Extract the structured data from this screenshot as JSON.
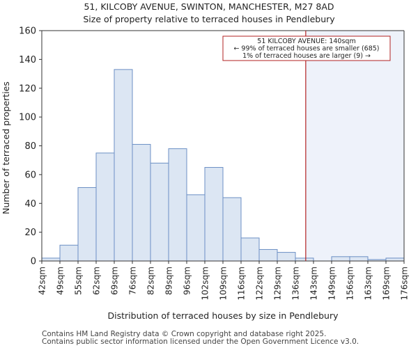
{
  "title_line1": "51, KILCOBY AVENUE, SWINTON, MANCHESTER, M27 8AD",
  "title_line2": "Size of property relative to terraced houses in Pendlebury",
  "footer_line1": "Contains HM Land Registry data © Crown copyright and database right 2025.",
  "footer_line2": "Contains public sector information licensed under the Open Government Licence v3.0.",
  "colors": {
    "bar_fill": "#dce6f3",
    "bar_stroke": "#6b8fc4",
    "highlight_fill": "#eef2fa",
    "marker_line": "#b22222",
    "annotation_border": "#b22222"
  },
  "chart_data": {
    "type": "bar",
    "title": "Size of property relative to terraced houses in Pendlebury",
    "xlabel": "Distribution of terraced houses by size in Pendlebury",
    "ylabel": "Number of terraced properties",
    "ylim": [
      0,
      160
    ],
    "yticks": [
      0,
      20,
      40,
      60,
      80,
      100,
      120,
      140,
      160
    ],
    "xlim": [
      42,
      176
    ],
    "bin_edges": [
      42,
      49,
      55,
      62,
      69,
      76,
      82,
      89,
      96,
      102,
      109,
      116,
      122,
      129,
      136,
      143,
      149,
      156,
      163,
      169,
      176
    ],
    "tick_labels": [
      "42sqm",
      "49sqm",
      "55sqm",
      "62sqm",
      "69sqm",
      "76sqm",
      "82sqm",
      "89sqm",
      "96sqm",
      "102sqm",
      "109sqm",
      "116sqm",
      "122sqm",
      "129sqm",
      "136sqm",
      "143sqm",
      "149sqm",
      "156sqm",
      "163sqm",
      "169sqm",
      "176sqm"
    ],
    "values": [
      2,
      11,
      51,
      75,
      133,
      81,
      68,
      78,
      46,
      65,
      44,
      16,
      8,
      6,
      2,
      0,
      3,
      3,
      1,
      2
    ],
    "marker_value": 140,
    "annotation": {
      "line1": "51 KILCOBY AVENUE: 140sqm",
      "line2": "← 99% of terraced houses are smaller (685)",
      "line3": "1% of terraced houses are larger (9) →"
    }
  }
}
